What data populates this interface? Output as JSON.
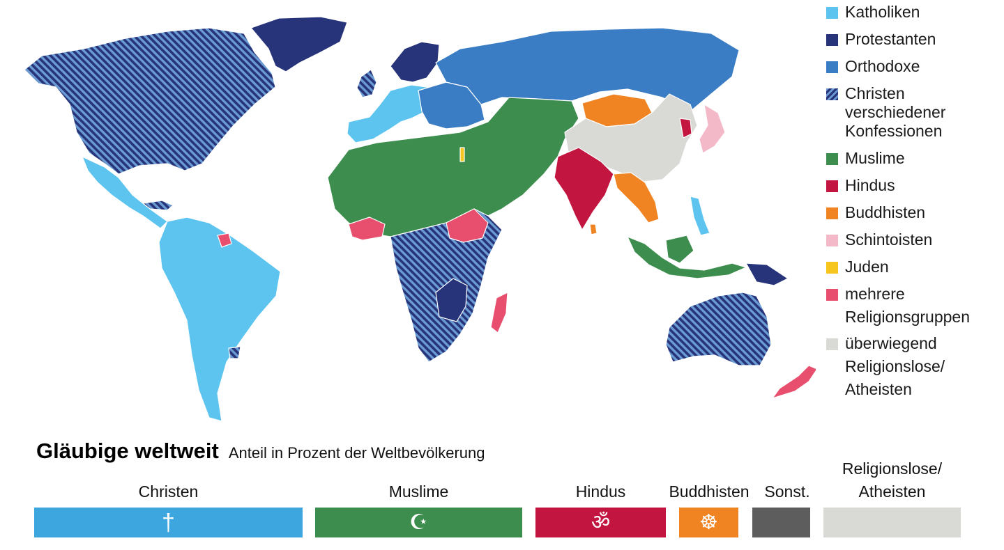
{
  "colors": {
    "catholic": "#5cc4ef",
    "protestant": "#27347a",
    "orthodox": "#3a7dc4",
    "mixed_christian_fg": "#27347a",
    "mixed_christian_bg": "#5f93cf",
    "muslim": "#3d8e4e",
    "hindu": "#c2153f",
    "buddhist": "#f08422",
    "shinto": "#f4b9c8",
    "jewish": "#f6c51e",
    "multiple": "#e84e6e",
    "irreligious": "#d9d9d6",
    "christen_bar": "#3ea6df",
    "sonst_bar": "#5d5d5d"
  },
  "legend": [
    {
      "id": "catholic",
      "label": "Katholiken",
      "color": "#5cc4ef",
      "pattern": false
    },
    {
      "id": "protestant",
      "label": "Protestanten",
      "color": "#27347a",
      "pattern": false
    },
    {
      "id": "orthodox",
      "label": "Orthodoxe",
      "color": "#3a7dc4",
      "pattern": false
    },
    {
      "id": "mixed",
      "label": "Christen\nverschiedener\nKonfessionen",
      "color": "#27347a",
      "pattern": true
    },
    {
      "id": "muslim",
      "label": "Muslime",
      "color": "#3d8e4e",
      "pattern": false
    },
    {
      "id": "hindu",
      "label": "Hindus",
      "color": "#c2153f",
      "pattern": false
    },
    {
      "id": "buddhist",
      "label": "Buddhisten",
      "color": "#f08422",
      "pattern": false
    },
    {
      "id": "shinto",
      "label": "Schintoisten",
      "color": "#f4b9c8",
      "pattern": false
    },
    {
      "id": "jewish",
      "label": "Juden",
      "color": "#f6c51e",
      "pattern": false
    },
    {
      "id": "multiple",
      "label": "mehrere\nReligionsgruppen",
      "color": "#e84e6e",
      "pattern": false
    },
    {
      "id": "irreligious",
      "label": "überwiegend\nReligionslose/\nAtheisten",
      "color": "#d9d9d6",
      "pattern": false
    }
  ],
  "title": "Gläubige weltweit",
  "subtitle": "Anteil in Prozent der Weltbevölkerung",
  "bars": [
    {
      "id": "christen",
      "label": "Christen",
      "color": "#3ea6df",
      "icon": "cross-icon",
      "glyph": "†"
    },
    {
      "id": "muslime",
      "label": "Muslime",
      "color": "#3d8e4e",
      "icon": "crescent-star-icon",
      "glyph": "☪"
    },
    {
      "id": "hindus",
      "label": "Hindus",
      "color": "#c2153f",
      "icon": "om-icon",
      "glyph": "ॐ"
    },
    {
      "id": "buddhisten",
      "label": "Buddhisten",
      "color": "#f08422",
      "icon": "dharma-wheel-icon",
      "glyph": "☸"
    },
    {
      "id": "sonst",
      "label": "Sonst.",
      "color": "#5d5d5d",
      "icon": "",
      "glyph": ""
    },
    {
      "id": "religionslose",
      "label": "Religionslose/\nAtheisten",
      "color": "#d9d9d6",
      "icon": "",
      "glyph": ""
    }
  ]
}
